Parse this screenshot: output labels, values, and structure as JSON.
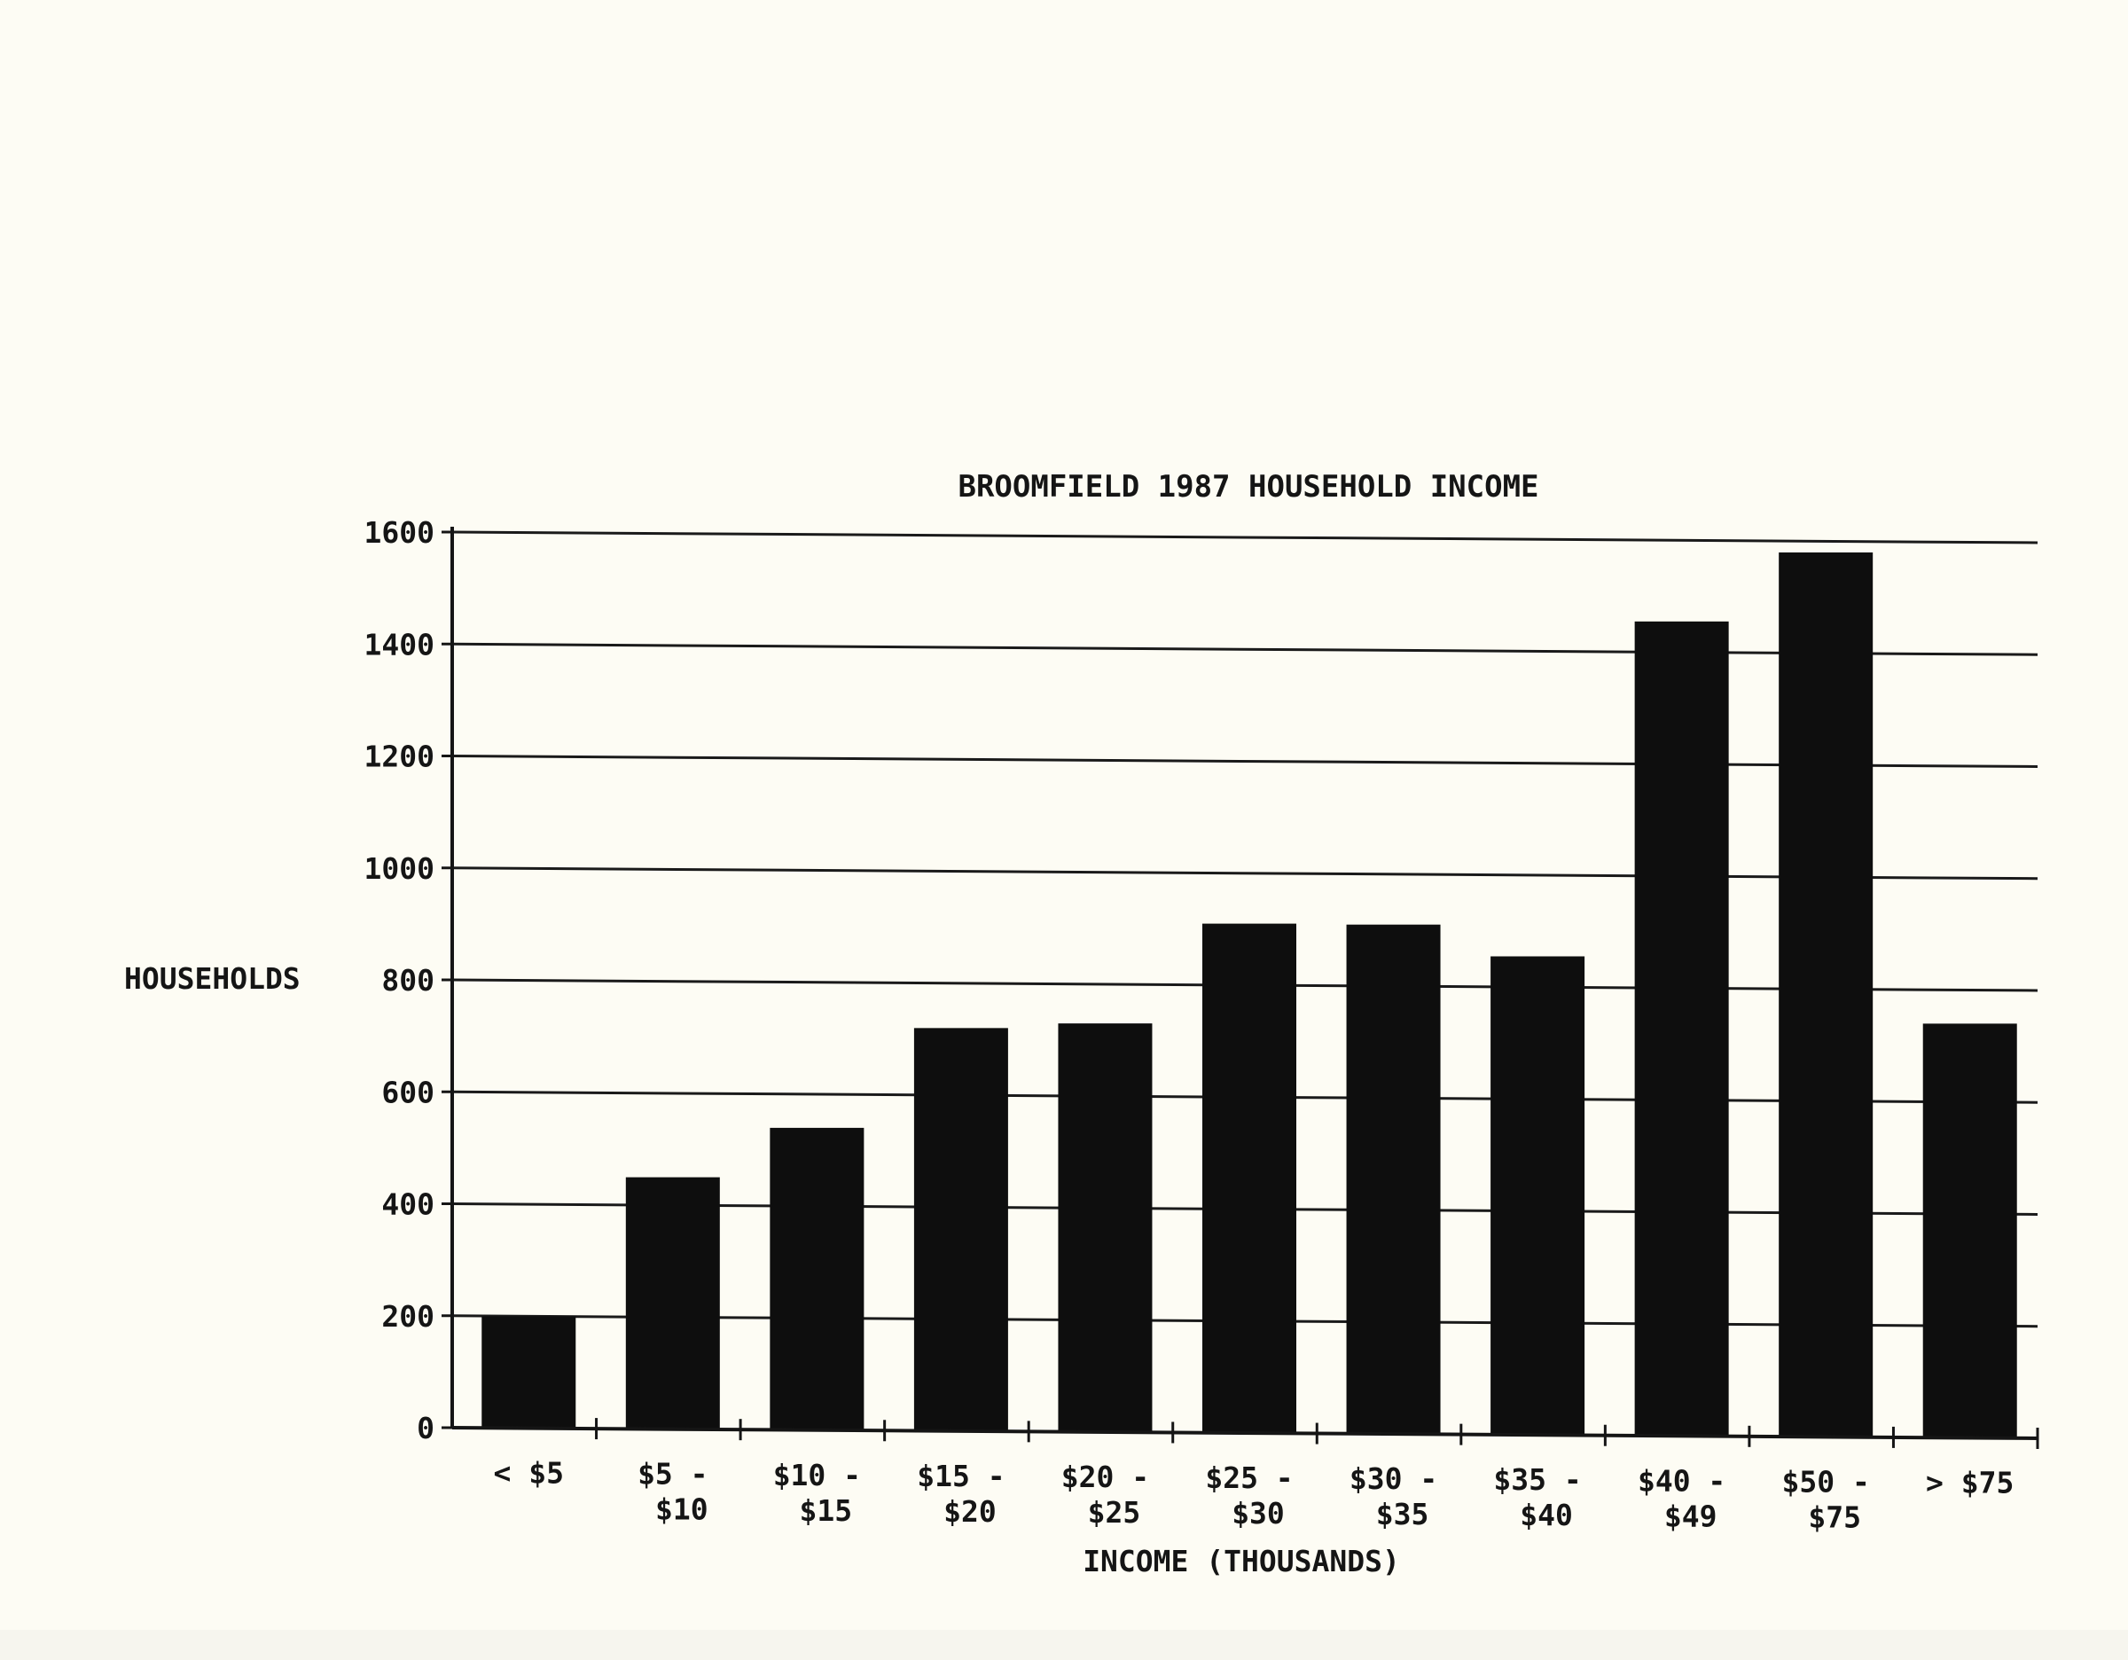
{
  "chart_data": {
    "type": "bar",
    "title": "BROOMFIELD 1987 HOUSEHOLD INCOME",
    "ylabel": "HOUSEHOLDS",
    "xlabel": "INCOME (THOUSANDS)",
    "ylim": [
      0,
      1600
    ],
    "yticks": [
      "0",
      "200",
      "400",
      "600",
      "800",
      "1000",
      "1200",
      "1400",
      "1600"
    ],
    "grid": true,
    "categories": [
      [
        "< $5"
      ],
      [
        "$5 -",
        "$10"
      ],
      [
        "$10 -",
        "$15"
      ],
      [
        "$15 -",
        "$20"
      ],
      [
        "$20 -",
        "$25"
      ],
      [
        "$25 -",
        "$30"
      ],
      [
        "$30 -",
        "$35"
      ],
      [
        "$35 -",
        "$40"
      ],
      [
        "$40 -",
        "$49"
      ],
      [
        "$50 -",
        "$75"
      ],
      [
        "> $75"
      ]
    ],
    "values": [
      200,
      450,
      540,
      720,
      730,
      910,
      910,
      855,
      1455,
      1580,
      740
    ],
    "colors": {
      "bar": "#0e0e0e",
      "grid": "#1a1a1a",
      "paper": "#fdfcf4"
    }
  }
}
